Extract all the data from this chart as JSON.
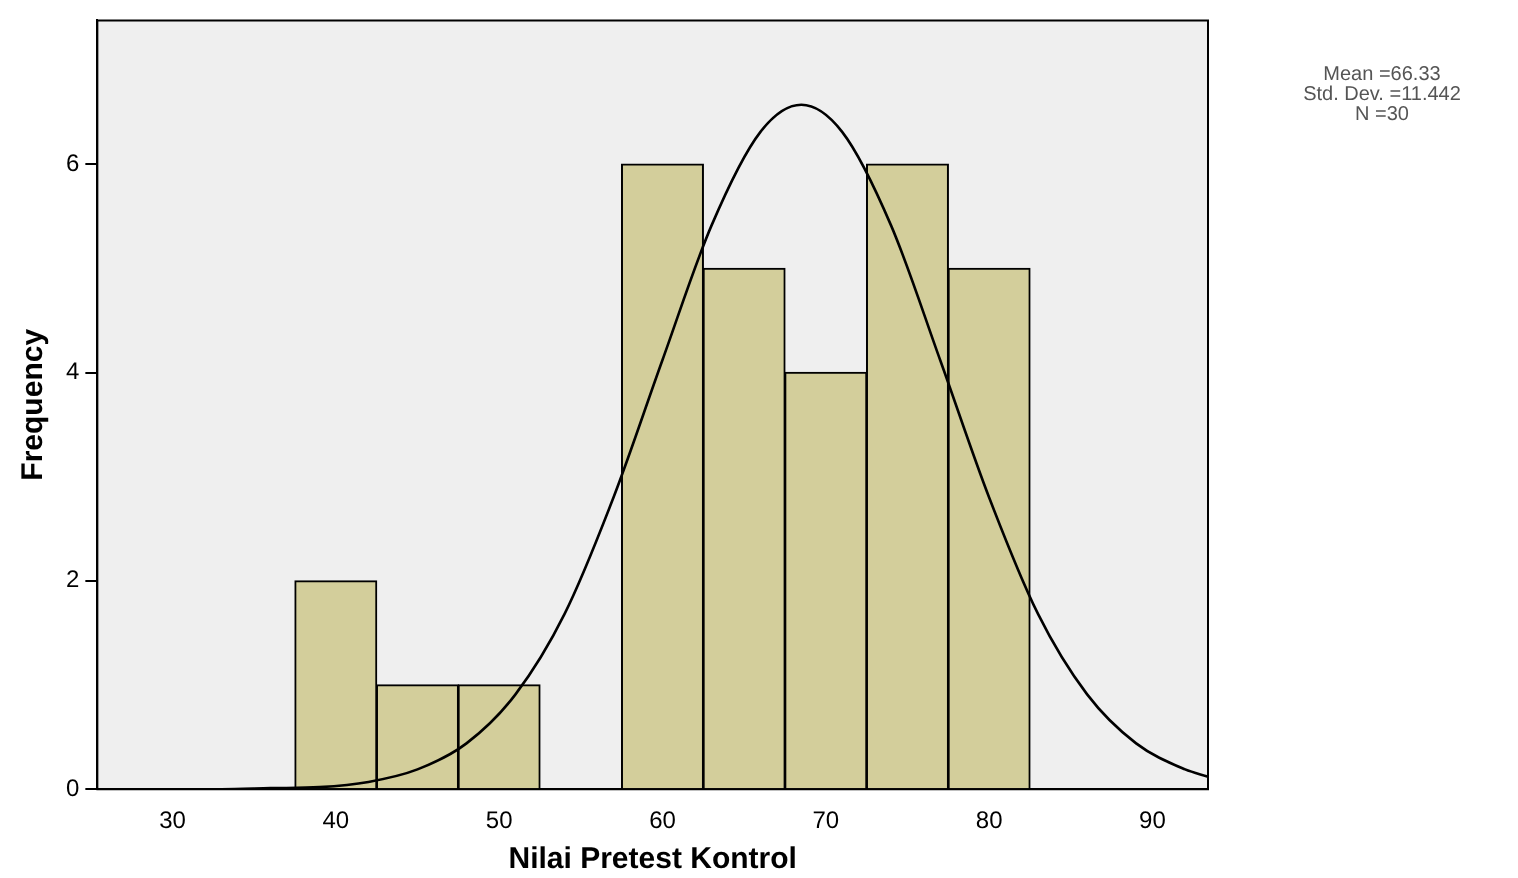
{
  "chart_data": {
    "type": "histogram",
    "xlabel": "Nilai Pretest Kontrol",
    "ylabel": "Frequency",
    "bins": [
      37.5,
      42.5,
      47.5,
      52.5,
      57.5,
      62.5,
      67.5,
      72.5,
      77.5,
      82.5
    ],
    "values": [
      2,
      1,
      1,
      0,
      6,
      5,
      4,
      6,
      5
    ],
    "color": "#d3ce9b",
    "series": [
      {
        "type": "line",
        "color": "#000000",
        "x": [
          27,
          30,
          33,
          36,
          39,
          42,
          45,
          48,
          51,
          54,
          57,
          60,
          63,
          66,
          68.5,
          71,
          74,
          77,
          80,
          83,
          86,
          89,
          92,
          93.4
        ],
        "values": [
          0,
          0,
          0,
          0.01,
          0.02,
          0.07,
          0.19,
          0.44,
          0.91,
          1.68,
          2.8,
          4.12,
          5.41,
          6.31,
          6.57,
          6.31,
          5.41,
          4.12,
          2.8,
          1.68,
          0.91,
          0.44,
          0.19,
          0.12
        ]
      }
    ],
    "xlim": [
      25.4,
      93.4
    ],
    "xticks": [
      30,
      40,
      50,
      60,
      70,
      80,
      90
    ],
    "ylim": [
      0,
      7.38
    ],
    "yticks": [
      0,
      2,
      4,
      6
    ],
    "grid": false,
    "legend": false,
    "marker": "none",
    "line_style": "solid",
    "annotations": [
      "Mean =66.33",
      "Std. Dev. =11.442",
      "N =30"
    ]
  }
}
